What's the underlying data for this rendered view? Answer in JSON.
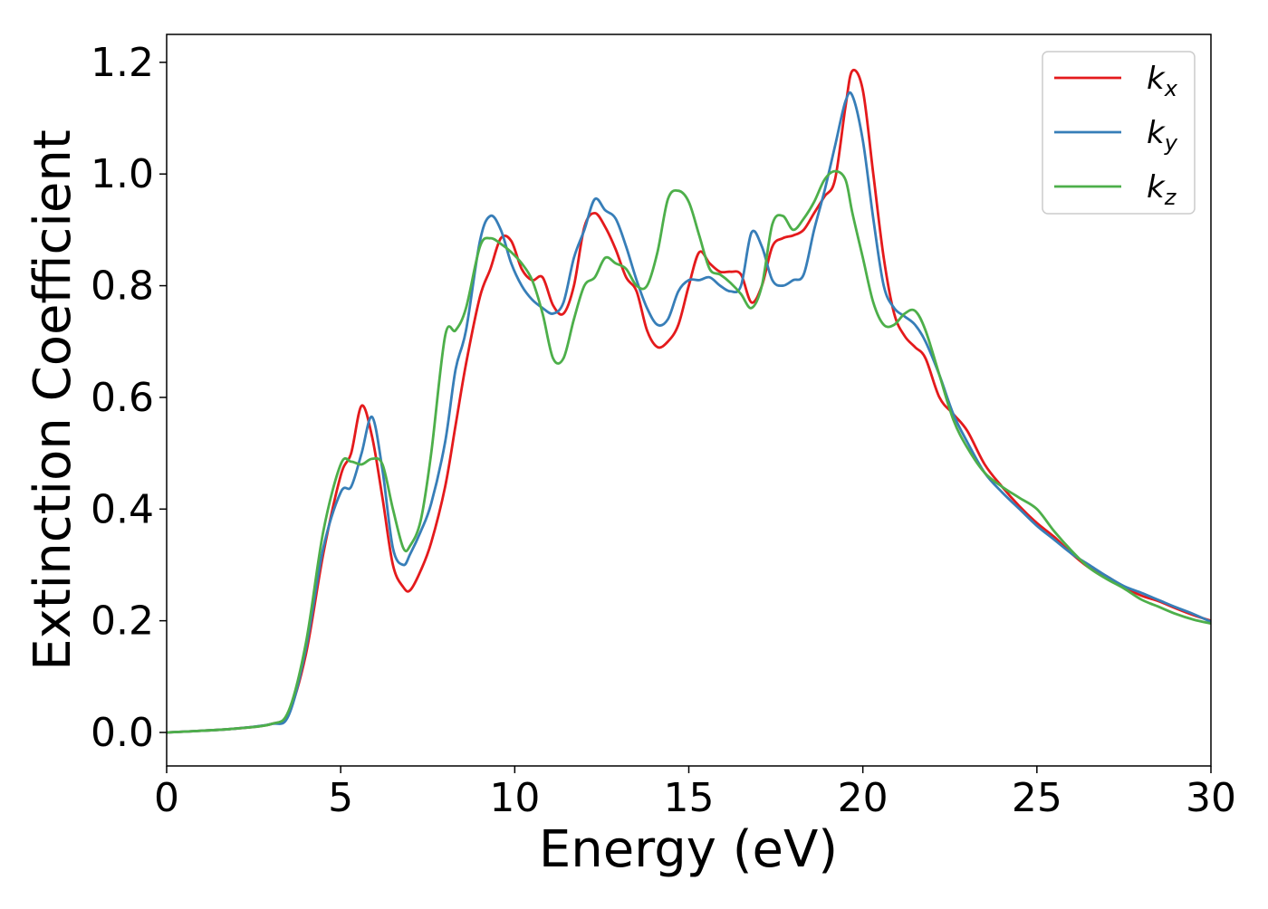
{
  "chart_data": {
    "type": "line",
    "title": "",
    "xlabel": "Energy (eV)",
    "ylabel": "Extinction Coefficient",
    "xlim": [
      0,
      30
    ],
    "ylim": [
      -0.06,
      1.25
    ],
    "xticks": [
      0,
      5,
      10,
      15,
      20,
      25,
      30
    ],
    "yticks": [
      0.0,
      0.2,
      0.4,
      0.6,
      0.8,
      1.0,
      1.2
    ],
    "xtick_labels": [
      "0",
      "5",
      "10",
      "15",
      "20",
      "25",
      "30"
    ],
    "ytick_labels": [
      "0.0",
      "0.2",
      "0.4",
      "0.6",
      "0.8",
      "1.0",
      "1.2"
    ],
    "grid": false,
    "legend_position": "top-right",
    "x": [
      0,
      1,
      2,
      3,
      3.5,
      4,
      4.5,
      5,
      5.3,
      5.6,
      5.9,
      6.2,
      6.5,
      6.8,
      7.0,
      7.3,
      7.6,
      8.0,
      8.3,
      8.6,
      9.0,
      9.3,
      9.6,
      9.9,
      10.2,
      10.5,
      10.8,
      11.1,
      11.4,
      11.7,
      12.0,
      12.3,
      12.6,
      12.9,
      13.2,
      13.5,
      13.8,
      14.1,
      14.4,
      14.7,
      15.0,
      15.3,
      15.6,
      15.9,
      16.2,
      16.5,
      16.8,
      17.1,
      17.4,
      17.7,
      18.0,
      18.3,
      18.6,
      18.9,
      19.2,
      19.5,
      19.7,
      20.0,
      20.3,
      20.6,
      20.9,
      21.2,
      21.5,
      21.8,
      22.2,
      22.6,
      23.0,
      23.5,
      24.0,
      24.5,
      25.0,
      25.5,
      26.0,
      26.5,
      27.0,
      27.5,
      28.0,
      28.5,
      29.0,
      29.5,
      30.0
    ],
    "series": [
      {
        "name": "k",
        "sub": "x",
        "color": "#e41a1c",
        "values": [
          0.0,
          0.003,
          0.007,
          0.015,
          0.035,
          0.14,
          0.32,
          0.46,
          0.5,
          0.585,
          0.53,
          0.42,
          0.3,
          0.26,
          0.255,
          0.29,
          0.34,
          0.44,
          0.55,
          0.66,
          0.78,
          0.83,
          0.885,
          0.88,
          0.83,
          0.81,
          0.815,
          0.765,
          0.75,
          0.8,
          0.905,
          0.93,
          0.905,
          0.865,
          0.815,
          0.79,
          0.72,
          0.69,
          0.7,
          0.73,
          0.8,
          0.86,
          0.84,
          0.825,
          0.825,
          0.82,
          0.77,
          0.8,
          0.87,
          0.885,
          0.89,
          0.9,
          0.93,
          0.96,
          0.99,
          1.12,
          1.185,
          1.15,
          1.0,
          0.85,
          0.75,
          0.71,
          0.69,
          0.67,
          0.6,
          0.57,
          0.54,
          0.48,
          0.44,
          0.405,
          0.375,
          0.35,
          0.32,
          0.295,
          0.28,
          0.26,
          0.245,
          0.235,
          0.222,
          0.21,
          0.2
        ]
      },
      {
        "name": "k",
        "sub": "y",
        "color": "#377eb8",
        "values": [
          0.0,
          0.003,
          0.007,
          0.015,
          0.03,
          0.15,
          0.33,
          0.43,
          0.44,
          0.5,
          0.565,
          0.47,
          0.33,
          0.3,
          0.32,
          0.36,
          0.41,
          0.52,
          0.65,
          0.72,
          0.88,
          0.925,
          0.9,
          0.84,
          0.8,
          0.775,
          0.76,
          0.75,
          0.77,
          0.85,
          0.9,
          0.955,
          0.935,
          0.92,
          0.87,
          0.81,
          0.76,
          0.73,
          0.74,
          0.79,
          0.81,
          0.81,
          0.815,
          0.8,
          0.79,
          0.8,
          0.895,
          0.87,
          0.81,
          0.8,
          0.81,
          0.82,
          0.9,
          0.97,
          1.05,
          1.13,
          1.14,
          1.06,
          0.92,
          0.8,
          0.76,
          0.745,
          0.73,
          0.7,
          0.64,
          0.57,
          0.52,
          0.465,
          0.43,
          0.4,
          0.37,
          0.345,
          0.32,
          0.3,
          0.28,
          0.262,
          0.25,
          0.237,
          0.224,
          0.212,
          0.198
        ]
      },
      {
        "name": "k",
        "sub": "z",
        "color": "#4daf4a",
        "values": [
          0.0,
          0.003,
          0.007,
          0.015,
          0.038,
          0.16,
          0.36,
          0.48,
          0.485,
          0.48,
          0.49,
          0.48,
          0.4,
          0.33,
          0.335,
          0.38,
          0.5,
          0.71,
          0.72,
          0.76,
          0.87,
          0.885,
          0.875,
          0.86,
          0.84,
          0.81,
          0.75,
          0.67,
          0.67,
          0.74,
          0.8,
          0.815,
          0.85,
          0.84,
          0.83,
          0.8,
          0.8,
          0.86,
          0.955,
          0.97,
          0.95,
          0.89,
          0.83,
          0.82,
          0.805,
          0.785,
          0.76,
          0.8,
          0.91,
          0.925,
          0.9,
          0.92,
          0.95,
          0.99,
          1.005,
          0.99,
          0.93,
          0.85,
          0.77,
          0.73,
          0.73,
          0.75,
          0.755,
          0.72,
          0.64,
          0.56,
          0.51,
          0.465,
          0.44,
          0.42,
          0.4,
          0.36,
          0.325,
          0.295,
          0.275,
          0.258,
          0.238,
          0.225,
          0.212,
          0.202,
          0.195
        ]
      }
    ]
  }
}
